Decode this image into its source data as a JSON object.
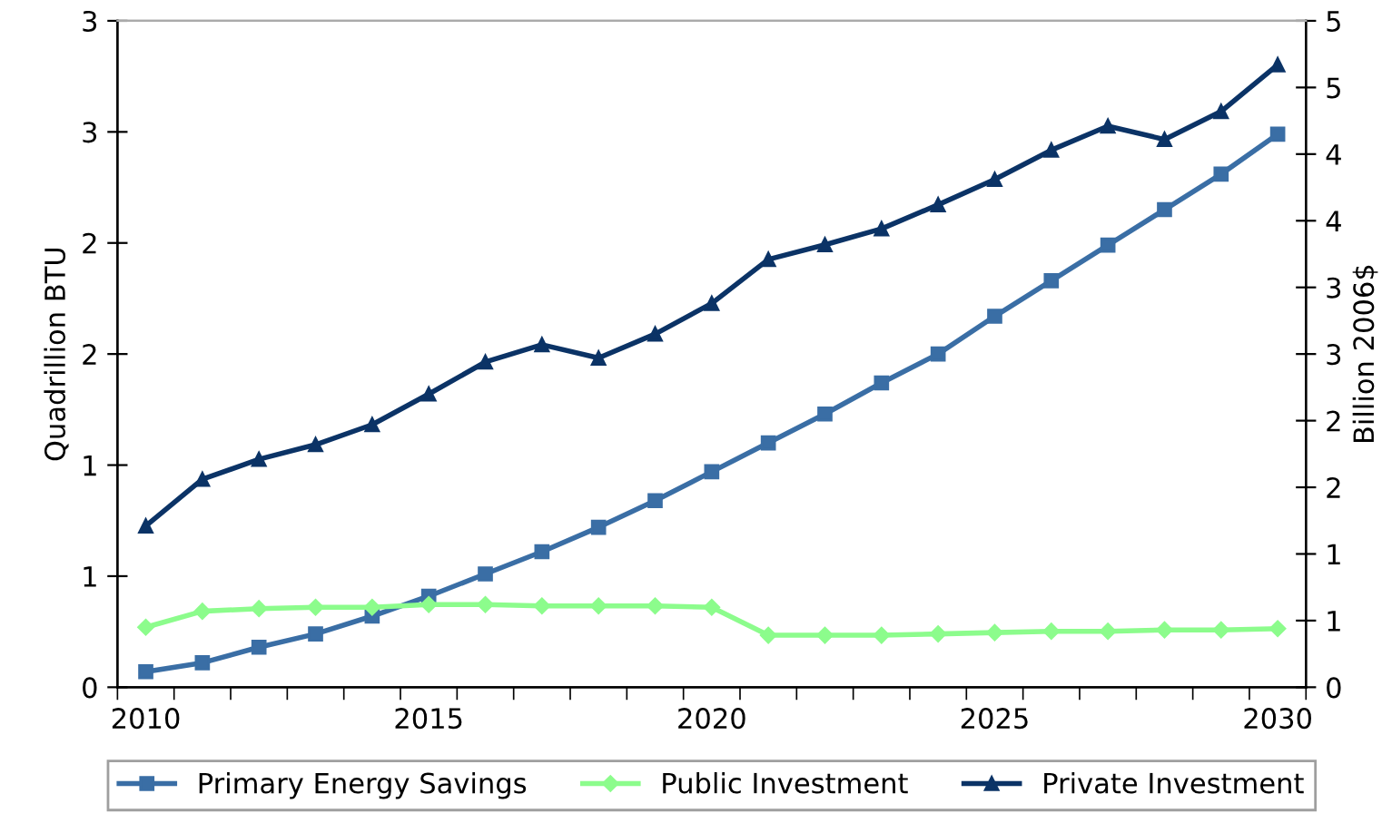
{
  "chart_data": {
    "type": "line",
    "ylabel": "Quadrillion BTU",
    "y2label": "Billion 2006$",
    "categories": [
      "2010",
      null,
      null,
      null,
      null,
      "2015",
      null,
      null,
      null,
      null,
      "2020",
      null,
      null,
      null,
      null,
      "2025",
      null,
      null,
      null,
      null,
      "2030"
    ],
    "series": [
      {
        "name": "Primary Energy Savings",
        "color": "#3a6ea5",
        "marker": "square",
        "values": [
          0.07,
          0.11,
          0.18,
          0.24,
          0.32,
          0.41,
          0.51,
          0.61,
          0.72,
          0.84,
          0.97,
          1.1,
          1.23,
          1.37,
          1.5,
          1.67,
          1.83,
          1.99,
          2.15,
          2.31,
          2.49
        ]
      },
      {
        "name": "Public Investment",
        "color": "#8cfc8c",
        "marker": "diamond",
        "axis": "y2",
        "values": [
          0.45,
          0.57,
          0.59,
          0.6,
          0.6,
          0.62,
          0.62,
          0.61,
          0.61,
          0.61,
          0.6,
          0.39,
          0.39,
          0.39,
          0.4,
          0.41,
          0.42,
          0.42,
          0.43,
          0.43,
          0.44
        ]
      },
      {
        "name": "Private Investment",
        "color": "#0b3366",
        "marker": "triangle",
        "axis": "y2",
        "values": [
          1.21,
          1.56,
          1.71,
          1.82,
          1.97,
          2.2,
          2.44,
          2.57,
          2.47,
          2.65,
          2.88,
          3.21,
          3.32,
          3.44,
          3.62,
          3.81,
          4.03,
          4.21,
          4.11,
          4.32,
          4.67
        ]
      }
    ],
    "ylim": [
      0,
      3
    ],
    "yticks": [
      0,
      {
        "value": 0.5,
        "label": "1"
      },
      1,
      {
        "value": 1.5,
        "label": "2"
      },
      2,
      {
        "value": 2.5,
        "label": "3"
      },
      3
    ],
    "y2lim": [
      0,
      5
    ],
    "y2ticks": [
      0,
      {
        "value": 0.5,
        "label": "1"
      },
      1,
      {
        "value": 1.5,
        "label": "2"
      },
      2,
      {
        "value": 2.5,
        "label": "3"
      },
      3,
      {
        "value": 3.5,
        "label": "4"
      },
      4,
      {
        "value": 4.5,
        "label": "5"
      },
      5
    ],
    "grid": false,
    "legend": "bottom",
    "line_style": "solid"
  }
}
